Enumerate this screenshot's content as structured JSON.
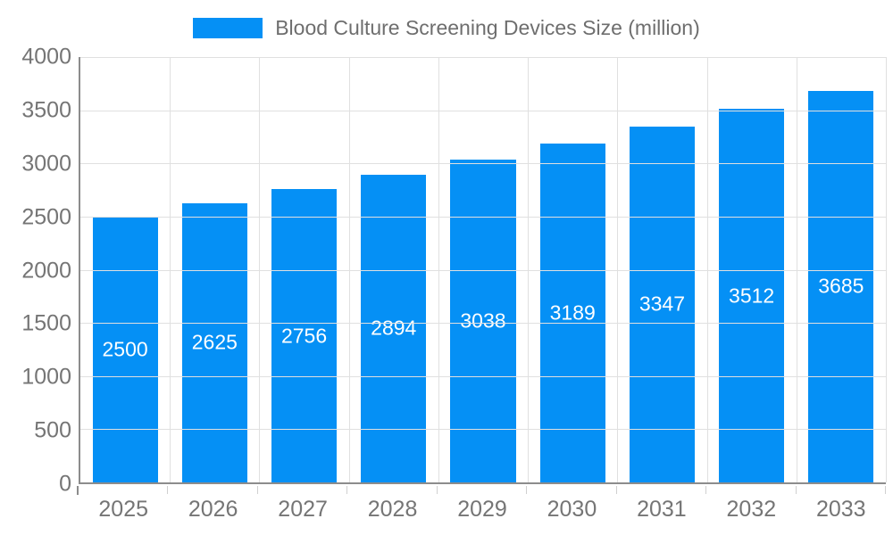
{
  "legend": {
    "label": "Blood Culture Screening Devices Size (million)"
  },
  "colors": {
    "bar": "#0590f5",
    "grid": "#e0e0e0",
    "tick": "#d0d0d0",
    "axis_line": "#8c8c8c",
    "axis_text": "#757575",
    "legend_text": "#6e6e6e",
    "bar_label": "#ffffff",
    "background": "#ffffff"
  },
  "chart_data": {
    "type": "bar",
    "title": "Blood Culture Screening Devices Size (million)",
    "categories": [
      "2025",
      "2026",
      "2027",
      "2028",
      "2029",
      "2030",
      "2031",
      "2032",
      "2033"
    ],
    "values": [
      2500,
      2625,
      2756,
      2894,
      3038,
      3189,
      3347,
      3512,
      3685
    ],
    "xlabel": "",
    "ylabel": "",
    "ylim": [
      0,
      4000
    ],
    "yticks": [
      0,
      500,
      1000,
      1500,
      2000,
      2500,
      3000,
      3500,
      4000
    ],
    "grid": true,
    "legend_position": "top",
    "bar_labels": "inside-center-white"
  }
}
